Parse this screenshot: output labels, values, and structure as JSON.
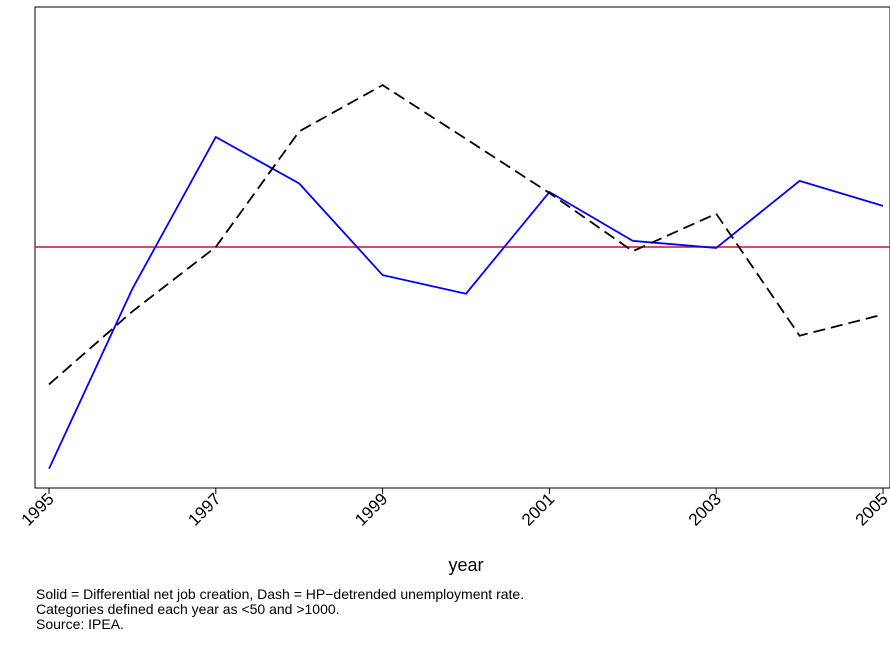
{
  "chart_data": {
    "type": "line",
    "title": "",
    "xlabel": "year",
    "ylabel": "",
    "xlim": [
      1995,
      2005
    ],
    "ylim": [
      -1.0,
      1.0
    ],
    "x_ticks": [
      "1995",
      "1997",
      "1999",
      "2001",
      "2003",
      "2005"
    ],
    "y_ticks_shown": false,
    "grid": false,
    "legend": "none",
    "reference_line": {
      "y": 0,
      "color": "#c0143c"
    },
    "series": [
      {
        "style": "solid",
        "color": "#0000ff",
        "x": [
          1995,
          1996,
          1997,
          1998,
          1999,
          2000,
          2001,
          2002,
          2003,
          2004,
          2005
        ],
        "y": [
          -0.94,
          -0.177,
          0.466,
          0.269,
          -0.119,
          -0.198,
          0.233,
          0.026,
          -0.004,
          0.28,
          0.174
        ]
      },
      {
        "style": "dashed",
        "color": "#000000",
        "x": [
          1995,
          1996,
          1997,
          1998,
          1999,
          2000,
          2001,
          2002,
          2003,
          2004,
          2005
        ],
        "y": [
          -0.582,
          -0.273,
          0.0,
          0.49,
          0.686,
          0.458,
          0.229,
          -0.018,
          0.141,
          -0.376,
          -0.286
        ]
      }
    ]
  },
  "notes": [
    "Solid = Differential net job creation, Dash = HP−detrended unemployment rate.",
    "Categories defined each year as <50 and >1000.",
    "Source: IPEA."
  ]
}
